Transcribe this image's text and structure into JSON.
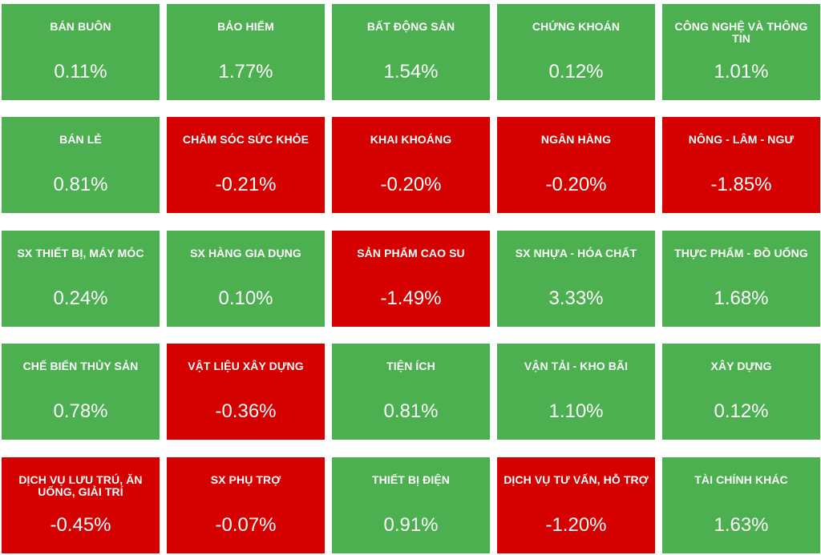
{
  "tiles": [
    {
      "name": "BÁN BUÔN",
      "value": "0.11%",
      "trend": "up"
    },
    {
      "name": "BẢO HIỂM",
      "value": "1.77%",
      "trend": "up"
    },
    {
      "name": "BẤT ĐỘNG SẢN",
      "value": "1.54%",
      "trend": "up"
    },
    {
      "name": "CHỨNG KHOÁN",
      "value": "0.12%",
      "trend": "up"
    },
    {
      "name": "CÔNG NGHỆ VÀ THÔNG TIN",
      "value": "1.01%",
      "trend": "up"
    },
    {
      "name": "BÁN LẺ",
      "value": "0.81%",
      "trend": "up"
    },
    {
      "name": "CHĂM SÓC SỨC KHỎE",
      "value": "-0.21%",
      "trend": "down"
    },
    {
      "name": "KHAI KHOÁNG",
      "value": "-0.20%",
      "trend": "down"
    },
    {
      "name": "NGÂN HÀNG",
      "value": "-0.20%",
      "trend": "down"
    },
    {
      "name": "NÔNG - LÂM - NGƯ",
      "value": "-1.85%",
      "trend": "down"
    },
    {
      "name": "SX THIẾT BỊ, MÁY MÓC",
      "value": "0.24%",
      "trend": "up"
    },
    {
      "name": "SX HÀNG GIA DỤNG",
      "value": "0.10%",
      "trend": "up"
    },
    {
      "name": "SẢN PHẨM CAO SU",
      "value": "-1.49%",
      "trend": "down"
    },
    {
      "name": "SX NHỰA - HÓA CHẤT",
      "value": "3.33%",
      "trend": "up"
    },
    {
      "name": "THỰC PHẨM - ĐỒ UỐNG",
      "value": "1.68%",
      "trend": "up"
    },
    {
      "name": "CHẾ BIẾN THỦY SẢN",
      "value": "0.78%",
      "trend": "up"
    },
    {
      "name": "VẬT LIỆU XÂY DỰNG",
      "value": "-0.36%",
      "trend": "down"
    },
    {
      "name": "TIỆN ÍCH",
      "value": "0.81%",
      "trend": "up"
    },
    {
      "name": "VẬN TẢI - KHO BÃI",
      "value": "1.10%",
      "trend": "up"
    },
    {
      "name": "XÂY DỰNG",
      "value": "0.12%",
      "trend": "up"
    },
    {
      "name": "DỊCH VỤ LƯU TRÚ, ĂN UỐNG, GIẢI TRÍ",
      "value": "-0.45%",
      "trend": "down"
    },
    {
      "name": "SX PHỤ TRỢ",
      "value": "-0.07%",
      "trend": "down"
    },
    {
      "name": "THIẾT BỊ ĐIỆN",
      "value": "0.91%",
      "trend": "up"
    },
    {
      "name": "DỊCH VỤ TƯ VẤN, HỖ TRỢ",
      "value": "-1.20%",
      "trend": "down"
    },
    {
      "name": "TÀI CHÍNH KHÁC",
      "value": "1.63%",
      "trend": "up"
    }
  ],
  "colors": {
    "up": "#4caf50",
    "down": "#d50000",
    "text": "#ffffff"
  }
}
